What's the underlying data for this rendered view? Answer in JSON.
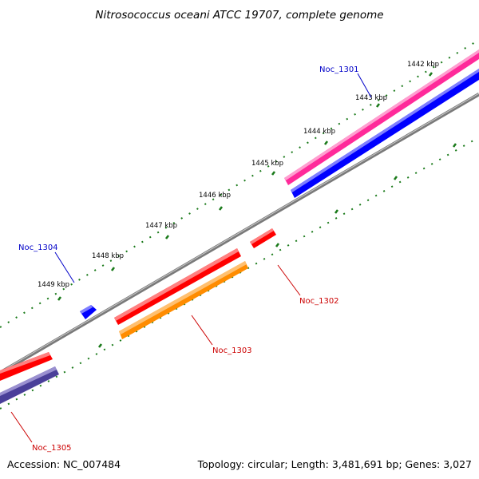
{
  "title": "Nitrosococcus oceani ATCC 19707, complete genome",
  "accession": "Accession: NC_007484",
  "topology": "Topology: circular; Length: 3,481,691 bp; Genes: 3,027",
  "colors": {
    "forward_label": "#0000c8",
    "reverse_label": "#cc0000",
    "backbone": "#7a7a7a",
    "tick": "#1a7a1a",
    "pink": "#ff2a9a",
    "blue": "#0000ff",
    "red": "#ff0000",
    "orange": "#ff8c00",
    "purple": "#4a3f99"
  },
  "scale": {
    "unit": "kbp",
    "ticks": [
      {
        "label": "1442 kbp"
      },
      {
        "label": "1443 kbp"
      },
      {
        "label": "1444 kbp"
      },
      {
        "label": "1445 kbp"
      },
      {
        "label": "1446 kbp"
      },
      {
        "label": "1447 kbp"
      },
      {
        "label": "1448 kbp"
      },
      {
        "label": "1449 kbp"
      }
    ]
  },
  "genes": [
    {
      "name": "Noc_1301",
      "strand": "forward"
    },
    {
      "name": "Noc_1302",
      "strand": "reverse"
    },
    {
      "name": "Noc_1303",
      "strand": "reverse"
    },
    {
      "name": "Noc_1304",
      "strand": "forward"
    },
    {
      "name": "Noc_1305",
      "strand": "reverse"
    }
  ]
}
